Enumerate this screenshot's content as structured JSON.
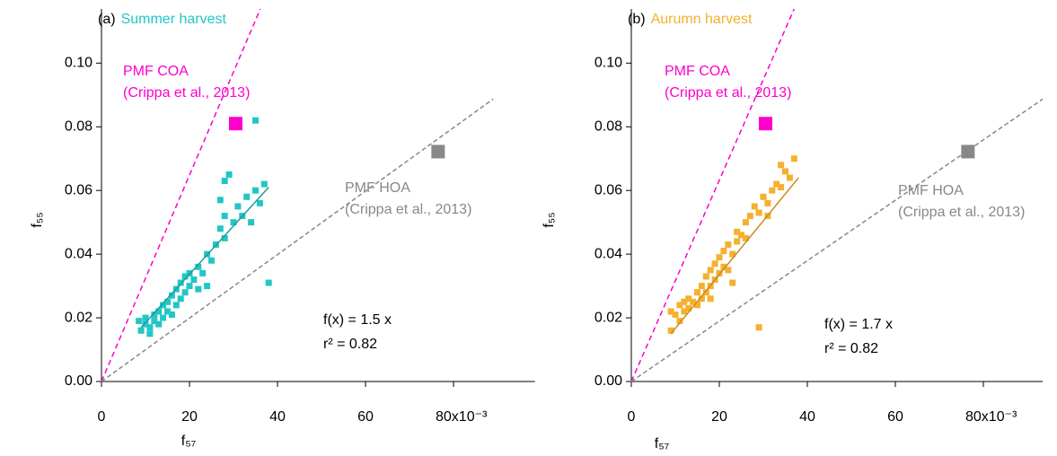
{
  "chart_data": [
    {
      "type": "scatter",
      "title": "(a)",
      "subtitle": "Summer harvest",
      "subtitle_color": "#22c6c6",
      "x_label": "f₅₇",
      "y_label": "f₅₅",
      "xlim": [
        0,
        0.0985
      ],
      "ylim": [
        0,
        0.117
      ],
      "xticks": [
        {
          "value": 0,
          "label": "0"
        },
        {
          "value": 0.02,
          "label": "20"
        },
        {
          "value": 0.04,
          "label": "40"
        },
        {
          "value": 0.06,
          "label": "60"
        },
        {
          "value": 0.08,
          "label": "80x10⁻³"
        }
      ],
      "yticks": [
        {
          "value": 0,
          "label": "0.00"
        },
        0.02,
        0.04,
        0.06,
        0.08,
        {
          "value": 0.1,
          "label": "0.10"
        }
      ],
      "points": {
        "color": "#22c6c6",
        "x": [
          0.0085,
          0.009,
          0.01,
          0.01,
          0.011,
          0.012,
          0.012,
          0.013,
          0.013,
          0.014,
          0.014,
          0.015,
          0.015,
          0.016,
          0.016,
          0.017,
          0.017,
          0.018,
          0.018,
          0.019,
          0.02,
          0.02,
          0.021,
          0.022,
          0.022,
          0.023,
          0.024,
          0.025,
          0.026,
          0.027,
          0.028,
          0.028,
          0.03,
          0.031,
          0.032,
          0.033,
          0.034,
          0.035,
          0.036,
          0.038,
          0.035,
          0.028,
          0.029,
          0.019,
          0.024,
          0.011,
          0.027,
          0.037
        ],
        "y": [
          0.019,
          0.016,
          0.018,
          0.02,
          0.017,
          0.019,
          0.021,
          0.018,
          0.022,
          0.02,
          0.024,
          0.022,
          0.025,
          0.021,
          0.027,
          0.024,
          0.029,
          0.026,
          0.031,
          0.028,
          0.03,
          0.034,
          0.032,
          0.029,
          0.036,
          0.034,
          0.04,
          0.038,
          0.043,
          0.048,
          0.052,
          0.045,
          0.05,
          0.055,
          0.052,
          0.058,
          0.05,
          0.06,
          0.056,
          0.031,
          0.082,
          0.063,
          0.065,
          0.033,
          0.03,
          0.015,
          0.057,
          0.062
        ]
      },
      "fit": {
        "color": "#1a9c9c",
        "x": [
          0.009,
          0.038
        ],
        "y": [
          0.017,
          0.061
        ],
        "equation": "f(x) = 1.5 x",
        "r2": "r² = 0.82"
      },
      "references": [
        {
          "label": "PMF COA",
          "citation": "(Crippa et al., 2013)",
          "color": "#ff00cc",
          "x": 0.0305,
          "y": 0.081,
          "line": {
            "x": [
              0,
              0.0361
            ],
            "y": [
              0,
              0.117
            ]
          }
        },
        {
          "label": "PMF HOA",
          "citation": "(Crippa et al., 2013)",
          "color": "#888888",
          "x": 0.0765,
          "y": 0.0722,
          "line": {
            "x": [
              0,
              0.089
            ],
            "y": [
              0,
              0.0887
            ]
          }
        }
      ]
    },
    {
      "type": "scatter",
      "title": "(b)",
      "subtitle": "Aurumn harvest",
      "subtitle_color": "#f5b02e",
      "x_label": "f₅₇",
      "y_label": "f₅₅",
      "xlim": [
        0,
        0.0935
      ],
      "ylim": [
        0,
        0.117
      ],
      "xticks": [
        {
          "value": 0,
          "label": "0"
        },
        {
          "value": 0.02,
          "label": "20"
        },
        {
          "value": 0.04,
          "label": "40"
        },
        {
          "value": 0.06,
          "label": "60"
        },
        {
          "value": 0.08,
          "label": "80x10⁻³"
        }
      ],
      "yticks": [
        {
          "value": 0,
          "label": "0.00"
        },
        0.02,
        0.04,
        0.06,
        0.08,
        {
          "value": 0.1,
          "label": "0.10"
        }
      ],
      "points": {
        "color": "#f5b02e",
        "x": [
          0.009,
          0.009,
          0.01,
          0.011,
          0.011,
          0.012,
          0.013,
          0.013,
          0.014,
          0.015,
          0.015,
          0.016,
          0.016,
          0.017,
          0.017,
          0.018,
          0.018,
          0.019,
          0.019,
          0.02,
          0.02,
          0.021,
          0.021,
          0.022,
          0.022,
          0.023,
          0.024,
          0.024,
          0.025,
          0.026,
          0.027,
          0.028,
          0.029,
          0.03,
          0.031,
          0.032,
          0.033,
          0.034,
          0.035,
          0.036,
          0.037,
          0.029,
          0.012,
          0.026,
          0.031,
          0.018,
          0.023,
          0.034
        ],
        "y": [
          0.016,
          0.022,
          0.021,
          0.019,
          0.024,
          0.022,
          0.023,
          0.026,
          0.025,
          0.024,
          0.028,
          0.026,
          0.03,
          0.028,
          0.033,
          0.03,
          0.035,
          0.032,
          0.037,
          0.034,
          0.039,
          0.036,
          0.041,
          0.035,
          0.043,
          0.04,
          0.044,
          0.047,
          0.046,
          0.05,
          0.052,
          0.055,
          0.053,
          0.058,
          0.056,
          0.06,
          0.062,
          0.061,
          0.066,
          0.064,
          0.07,
          0.017,
          0.025,
          0.045,
          0.052,
          0.026,
          0.031,
          0.068
        ]
      },
      "fit": {
        "color": "#c88c1c",
        "x": [
          0.009,
          0.038
        ],
        "y": [
          0.015,
          0.064
        ],
        "equation": "f(x) = 1.7 x",
        "r2": "r² = 0.82"
      },
      "references": [
        {
          "label": "PMF COA",
          "citation": "(Crippa et al., 2013)",
          "color": "#ff00cc",
          "x": 0.0305,
          "y": 0.081,
          "line": {
            "x": [
              0,
              0.037
            ],
            "y": [
              0,
              0.117
            ]
          }
        },
        {
          "label": "PMF HOA",
          "citation": "(Crippa et al., 2013)",
          "color": "#888888",
          "x": 0.0765,
          "y": 0.0722,
          "line": {
            "x": [
              0,
              0.0935
            ],
            "y": [
              0,
              0.0887
            ]
          }
        }
      ]
    }
  ]
}
